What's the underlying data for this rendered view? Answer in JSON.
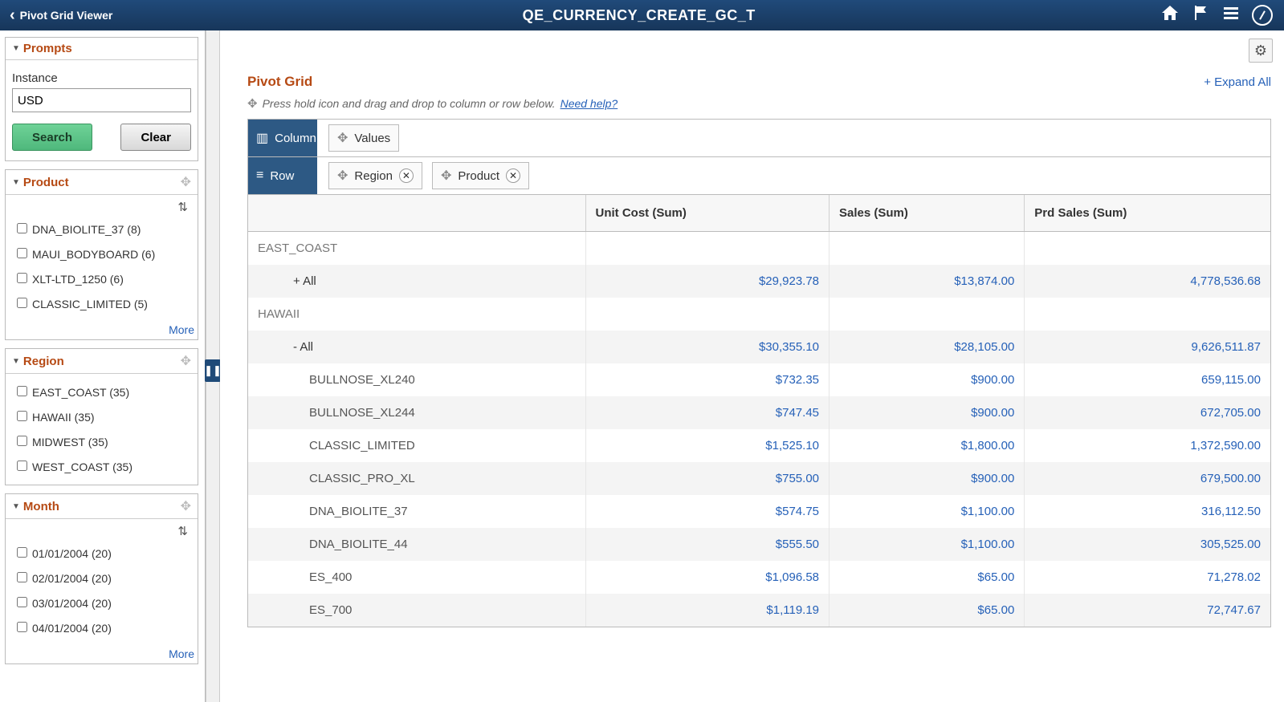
{
  "header": {
    "back_label": "Pivot Grid Viewer",
    "title": "QE_CURRENCY_CREATE_GC_T"
  },
  "sidebar": {
    "prompts": {
      "title": "Prompts",
      "instance_label": "Instance",
      "instance_value": "USD",
      "search_label": "Search",
      "clear_label": "Clear"
    },
    "product": {
      "title": "Product",
      "options": [
        "DNA_BIOLITE_37 (8)",
        "MAUI_BODYBOARD (6)",
        "XLT-LTD_1250 (6)",
        "CLASSIC_LIMITED (5)"
      ],
      "more": "More"
    },
    "region": {
      "title": "Region",
      "options": [
        "EAST_COAST (35)",
        "HAWAII (35)",
        "MIDWEST (35)",
        "WEST_COAST (35)"
      ]
    },
    "month": {
      "title": "Month",
      "options": [
        "01/01/2004 (20)",
        "02/01/2004 (20)",
        "03/01/2004 (20)",
        "04/01/2004 (20)"
      ],
      "more": "More"
    }
  },
  "main": {
    "pivot_title": "Pivot Grid",
    "expand_all": "+ Expand All",
    "hint_text": "Press hold icon and drag and drop to column or row below.",
    "need_help": "Need help?",
    "axes": {
      "column_label": "Column",
      "row_label": "Row",
      "column_chips": [
        {
          "label": "Values",
          "removable": false
        }
      ],
      "row_chips": [
        {
          "label": "Region",
          "removable": true
        },
        {
          "label": "Product",
          "removable": true
        }
      ]
    },
    "columns": [
      "Unit Cost (Sum)",
      "Sales (Sum)",
      "Prd Sales (Sum)"
    ],
    "rows": [
      {
        "type": "region",
        "label": "EAST_COAST",
        "v": [
          "",
          "",
          ""
        ]
      },
      {
        "type": "all",
        "label": "+ All",
        "v": [
          "$29,923.78",
          "$13,874.00",
          "4,778,536.68"
        ]
      },
      {
        "type": "region",
        "label": "HAWAII",
        "v": [
          "",
          "",
          ""
        ]
      },
      {
        "type": "all",
        "label": "- All",
        "v": [
          "$30,355.10",
          "$28,105.00",
          "9,626,511.87"
        ]
      },
      {
        "type": "prod",
        "label": "BULLNOSE_XL240",
        "v": [
          "$732.35",
          "$900.00",
          "659,115.00"
        ]
      },
      {
        "type": "prod",
        "label": "BULLNOSE_XL244",
        "v": [
          "$747.45",
          "$900.00",
          "672,705.00"
        ]
      },
      {
        "type": "prod",
        "label": "CLASSIC_LIMITED",
        "v": [
          "$1,525.10",
          "$1,800.00",
          "1,372,590.00"
        ]
      },
      {
        "type": "prod",
        "label": "CLASSIC_PRO_XL",
        "v": [
          "$755.00",
          "$900.00",
          "679,500.00"
        ]
      },
      {
        "type": "prod",
        "label": "DNA_BIOLITE_37",
        "v": [
          "$574.75",
          "$1,100.00",
          "316,112.50"
        ]
      },
      {
        "type": "prod",
        "label": "DNA_BIOLITE_44",
        "v": [
          "$555.50",
          "$1,100.00",
          "305,525.00"
        ]
      },
      {
        "type": "prod",
        "label": "ES_400",
        "v": [
          "$1,096.58",
          "$65.00",
          "71,278.02"
        ]
      },
      {
        "type": "prod",
        "label": "ES_700",
        "v": [
          "$1,119.19",
          "$65.00",
          "72,747.67"
        ]
      }
    ]
  }
}
